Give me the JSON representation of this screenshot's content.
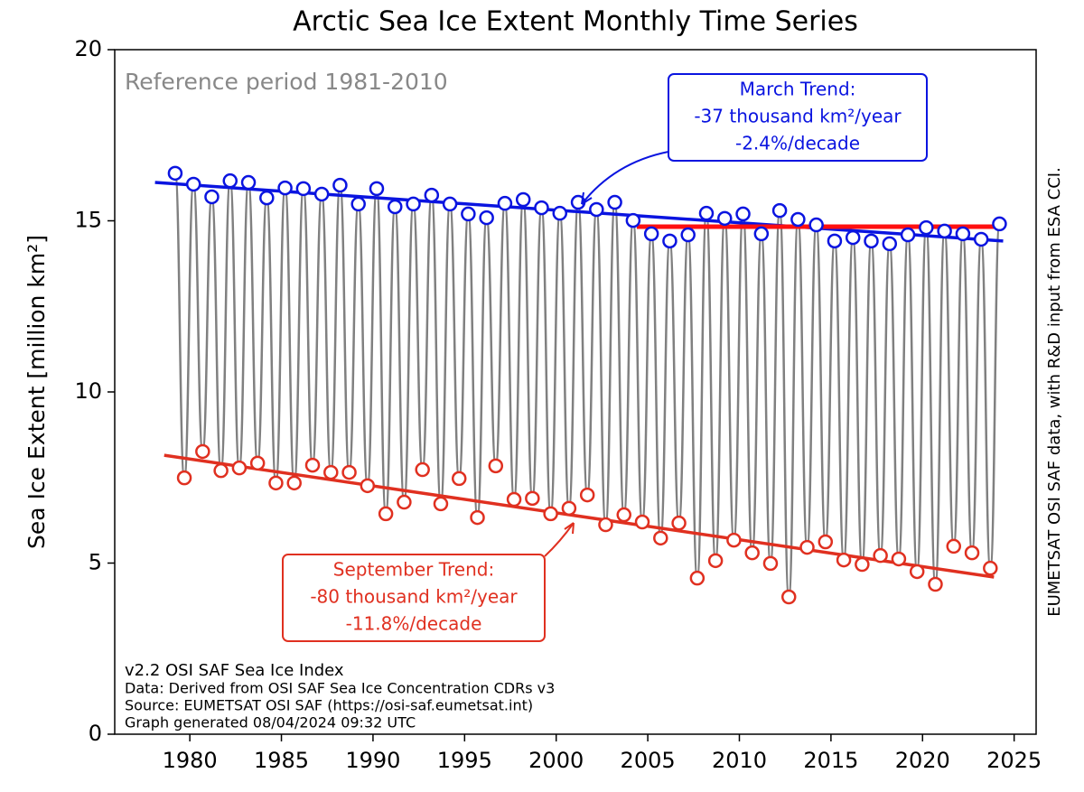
{
  "chart_data": {
    "type": "line",
    "title": "Arctic Sea Ice Extent Monthly Time Series",
    "y_label": "Sea Ice Extent [million km²]",
    "xlim": [
      1975.9,
      2026.2
    ],
    "xticks": [
      1980,
      1985,
      1990,
      1995,
      2000,
      2005,
      2010,
      2015,
      2020,
      2025
    ],
    "ylim": [
      0,
      20
    ],
    "yticks": [
      0,
      5,
      10,
      15,
      20
    ],
    "line_color": "#808080",
    "series": [
      {
        "color": "#0a14e0",
        "x": [
          1979.2,
          1980.2,
          1981.2,
          1982.2,
          1983.2,
          1984.2,
          1985.2,
          1986.2,
          1987.2,
          1988.2,
          1989.2,
          1990.2,
          1991.2,
          1992.2,
          1993.2,
          1994.2,
          1995.2,
          1996.2,
          1997.2,
          1998.2,
          1999.2,
          2000.2,
          2001.2,
          2002.2,
          2003.2,
          2004.2,
          2005.2,
          2006.2,
          2007.2,
          2008.2,
          2009.2,
          2010.2,
          2011.2,
          2012.2,
          2013.2,
          2014.2,
          2015.2,
          2016.2,
          2017.2,
          2018.2,
          2019.2,
          2020.2,
          2021.2,
          2022.2,
          2023.2,
          2024.2
        ],
        "values": [
          16.39,
          16.07,
          15.7,
          16.17,
          16.12,
          15.67,
          15.96,
          15.94,
          15.78,
          16.04,
          15.49,
          15.94,
          15.41,
          15.49,
          15.75,
          15.49,
          15.2,
          15.09,
          15.51,
          15.62,
          15.38,
          15.22,
          15.54,
          15.33,
          15.54,
          15.01,
          14.62,
          14.41,
          14.59,
          15.22,
          15.07,
          15.2,
          14.62,
          15.3,
          15.04,
          14.88,
          14.41,
          14.51,
          14.41,
          14.33,
          14.59,
          14.8,
          14.7,
          14.62,
          14.46,
          14.91
        ]
      },
      {
        "color": "#e03020",
        "x": [
          1979.7,
          1980.7,
          1981.7,
          1982.7,
          1983.7,
          1984.7,
          1985.7,
          1986.7,
          1987.7,
          1988.7,
          1989.7,
          1990.7,
          1991.7,
          1992.7,
          1993.7,
          1994.7,
          1995.7,
          1996.7,
          1997.7,
          1998.7,
          1999.7,
          2000.7,
          2001.7,
          2002.7,
          2003.7,
          2004.7,
          2005.7,
          2006.7,
          2007.7,
          2008.7,
          2009.7,
          2010.7,
          2011.7,
          2012.7,
          2013.7,
          2014.7,
          2015.7,
          2016.7,
          2017.7,
          2018.7,
          2019.7,
          2020.7,
          2021.7,
          2022.7,
          2023.7
        ],
        "values": [
          7.49,
          8.26,
          7.7,
          7.78,
          7.92,
          7.34,
          7.34,
          7.86,
          7.65,
          7.65,
          7.26,
          6.44,
          6.78,
          7.73,
          6.73,
          7.47,
          6.33,
          7.84,
          6.86,
          6.89,
          6.44,
          6.6,
          6.99,
          6.12,
          6.41,
          6.2,
          5.73,
          6.17,
          4.56,
          5.07,
          5.67,
          5.3,
          4.99,
          4.01,
          5.46,
          5.62,
          5.09,
          4.96,
          5.22,
          5.12,
          4.75,
          4.38,
          5.49,
          5.3,
          4.85
        ]
      }
    ],
    "trend_lines": [
      {
        "color": "#0a14e0",
        "x": [
          1978.1,
          2024.4
        ],
        "values": [
          16.12,
          14.41
        ]
      },
      {
        "color": "#e03020",
        "x": [
          1978.6,
          2023.9
        ],
        "values": [
          8.15,
          4.59
        ]
      },
      {
        "color": "#ff1010",
        "x": [
          2004.4,
          2024.4
        ],
        "values": [
          14.83,
          14.83
        ]
      }
    ],
    "reference_note": "Reference period 1981-2010",
    "march_annotation": [
      "March Trend:",
      "-37 thousand km²/year",
      "-2.4%/decade"
    ],
    "september_annotation": [
      "September Trend:",
      "-80 thousand km²/year",
      "-11.8%/decade"
    ],
    "footnotes": [
      "v2.2 OSI SAF Sea Ice Index",
      "Data: Derived from OSI SAF Sea Ice Concentration CDRs v3",
      "Source: EUMETSAT OSI SAF (https://osi-saf.eumetsat.int)",
      "Graph generated 08/04/2024 09:32 UTC"
    ],
    "side_note": "EUMETSAT OSI SAF data, with R&D input from ESA CCI."
  }
}
